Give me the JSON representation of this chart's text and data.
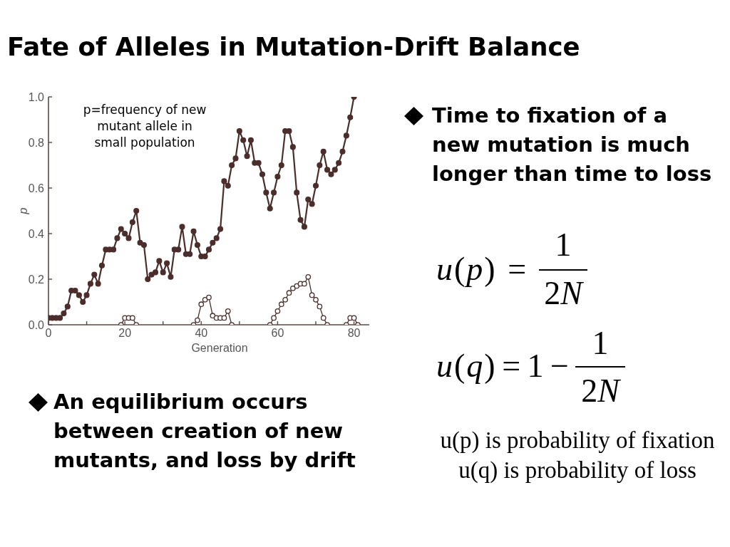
{
  "chart_data": {
    "type": "line",
    "title": "Fate of Alleles in Mutation-Drift Balance",
    "xlabel": "Generation",
    "ylabel": "p",
    "annotations": [
      "p=frequency of new\nmutant allele in\nsmall population",
      "Time to fixation of a\nnew mutation is much\nlonger than time to loss",
      "u(p) =",
      "1",
      "2N",
      "u(q) = 1 −",
      "1",
      "2N",
      "An equilibrium occurs\nbetween creation of new\nmutants, and loss by drift",
      "u(p) is probability of fixation",
      "u(q) is probability of loss"
    ],
    "x": [
      0,
      1,
      2,
      3,
      4,
      5,
      6,
      7,
      8,
      9,
      10,
      11,
      12,
      13,
      14,
      15,
      16,
      17,
      18,
      19,
      20,
      21,
      22,
      23,
      24,
      25,
      26,
      27,
      28,
      29,
      30,
      31,
      32,
      33,
      34,
      35,
      36,
      37,
      38,
      39,
      40,
      41,
      42,
      43,
      44,
      45,
      46,
      47,
      48,
      49,
      50,
      51,
      52,
      53,
      54,
      55,
      56,
      57,
      58,
      59,
      60,
      61,
      62,
      63,
      64,
      65,
      66,
      67,
      68,
      69,
      70,
      71,
      72,
      73,
      74,
      75,
      76,
      77,
      78,
      79,
      80
    ],
    "series": [
      {
        "color": "#4b2d2b",
        "values": [
          0.03,
          0.03,
          0.03,
          0.03,
          0.05,
          0.08,
          0.15,
          0.15,
          0.13,
          0.1,
          0.13,
          0.18,
          0.22,
          0.18,
          0.26,
          0.33,
          0.33,
          0.33,
          0.38,
          0.42,
          0.4,
          0.38,
          0.45,
          0.5,
          0.36,
          0.35,
          0.2,
          0.22,
          0.23,
          0.28,
          0.23,
          0.27,
          0.21,
          0.33,
          0.33,
          0.43,
          0.31,
          0.31,
          0.41,
          0.35,
          0.3,
          0.3,
          0.33,
          0.36,
          0.38,
          0.42,
          0.63,
          0.61,
          0.7,
          0.73,
          0.85,
          0.81,
          0.74,
          0.81,
          0.71,
          0.71,
          0.66,
          0.58,
          0.51,
          0.58,
          0.65,
          0.7,
          0.85,
          0.85,
          0.78,
          0.58,
          0.46,
          0.43,
          0.55,
          0.53,
          0.61,
          0.7,
          0.76,
          0.68,
          0.66,
          0.68,
          0.71,
          0.76,
          0.83,
          0.91,
          1.0
        ]
      },
      {
        "color": "#4b2d2b",
        "x": [
          19,
          20,
          21,
          22,
          23
        ],
        "values": [
          0,
          0.03,
          0.03,
          0.03,
          0
        ]
      },
      {
        "color": "#4b2d2b",
        "x": [
          38,
          39,
          40,
          41,
          42,
          43,
          44,
          45,
          46,
          47,
          48
        ],
        "values": [
          0,
          0.02,
          0.09,
          0.11,
          0.12,
          0.04,
          0.03,
          0.03,
          0.03,
          0.06,
          0
        ]
      },
      {
        "color": "#4b2d2b",
        "x": [
          58,
          59,
          60,
          61,
          62,
          63,
          64,
          65,
          66,
          67,
          68,
          69,
          70,
          71,
          72,
          73
        ],
        "values": [
          0,
          0.03,
          0.06,
          0.09,
          0.11,
          0.14,
          0.16,
          0.17,
          0.18,
          0.18,
          0.21,
          0.13,
          0.11,
          0.08,
          0.03,
          0
        ]
      },
      {
        "color": "#4b2d2b",
        "x": [
          78,
          79,
          80,
          81
        ],
        "values": [
          0,
          0.03,
          0.03,
          0
        ]
      }
    ],
    "xlim": [
      0,
      84
    ],
    "xticks": [
      0,
      {
        "value": 10,
        "label": null
      },
      20,
      {
        "value": 30,
        "label": null
      },
      40,
      {
        "value": 50,
        "label": null
      },
      60,
      {
        "value": 70,
        "label": null
      },
      80
    ],
    "ylim": [
      0,
      1
    ],
    "yticks": [
      {
        "value": 0,
        "label": "0.0"
      },
      0.2,
      0.4,
      0.6,
      0.8,
      {
        "value": 1,
        "label": "1.0"
      }
    ],
    "marker": "circle"
  }
}
